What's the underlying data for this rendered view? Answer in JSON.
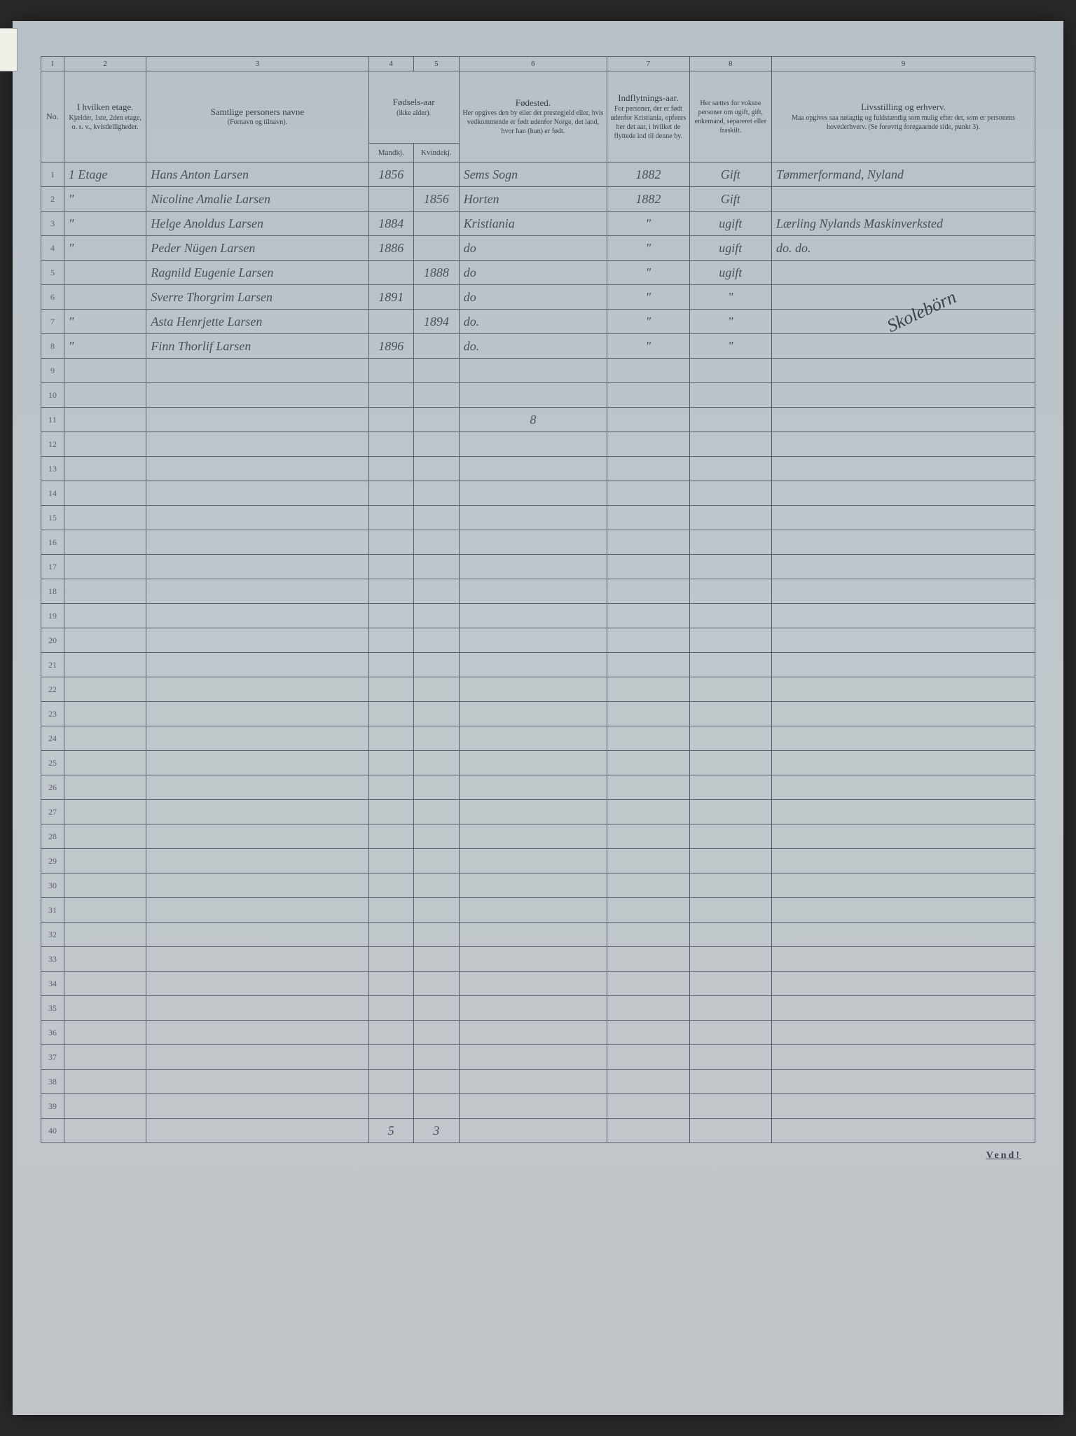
{
  "columns": {
    "nums": [
      "1",
      "2",
      "3",
      "4",
      "5",
      "6",
      "7",
      "8",
      "9"
    ],
    "c1": {
      "label": "No."
    },
    "c2": {
      "main": "I hvilken etage.",
      "sub": "Kjælder, 1ste, 2den etage, o. s. v., kvistleiligheder."
    },
    "c3": {
      "main": "Samtlige personers navne",
      "sub": "(Fornavn og tilnavn)."
    },
    "c45": {
      "main": "Fødsels-aar",
      "sub": "(ikke alder)."
    },
    "c4s": "Mandkj.",
    "c5s": "Kvindekj.",
    "c6": {
      "main": "Fødested.",
      "sub": "Her opgives den by eller det prestegjeld eller, hvis vedkommende er født udenfor Norge, det land, hvor han (hun) er født."
    },
    "c7": {
      "main": "Indflytnings-aar.",
      "sub": "For personer, der er født udenfor Kristiania, opføres her det aar, i hvilket de flyttede ind til denne by."
    },
    "c8": {
      "main": "",
      "sub": "Her sættes for voksne personer om ugift, gift, enkemand, separeret eller fraskilt."
    },
    "c9": {
      "main": "Livsstilling og erhverv.",
      "sub": "Maa opgives saa nøiagtig og fuldstændig som mulig efter det, som er personens hovederhverv. (Se forøvrig foregaaende side, punkt 3)."
    }
  },
  "rows": [
    {
      "n": "1",
      "etage": "1 Etage",
      "navn": "Hans Anton Larsen",
      "m": "1856",
      "k": "",
      "fsted": "Sems Sogn",
      "indfl": "1882",
      "civ": "Gift",
      "erhv": "Tømmerformand, Nyland"
    },
    {
      "n": "2",
      "etage": "\"",
      "navn": "Nicoline Amalie Larsen",
      "m": "",
      "k": "1856",
      "fsted": "Horten",
      "indfl": "1882",
      "civ": "Gift",
      "erhv": ""
    },
    {
      "n": "3",
      "etage": "\"",
      "navn": "Helge Anoldus Larsen",
      "m": "1884",
      "k": "",
      "fsted": "Kristiania",
      "indfl": "\"",
      "civ": "ugift",
      "erhv": "Lærling Nylands Maskinverksted"
    },
    {
      "n": "4",
      "etage": "\"",
      "navn": "Peder Nügen Larsen",
      "m": "1886",
      "k": "",
      "fsted": "do",
      "indfl": "\"",
      "civ": "ugift",
      "erhv": "do.        do."
    },
    {
      "n": "5",
      "etage": "",
      "navn": "Ragnild Eugenie Larsen",
      "m": "",
      "k": "1888",
      "fsted": "do",
      "indfl": "\"",
      "civ": "ugift",
      "erhv": ""
    },
    {
      "n": "6",
      "etage": "",
      "navn": "Sverre Thorgrim Larsen",
      "m": "1891",
      "k": "",
      "fsted": "do",
      "indfl": "\"",
      "civ": "\"",
      "erhv": ""
    },
    {
      "n": "7",
      "etage": "\"",
      "navn": "Asta Henrjette Larsen",
      "m": "",
      "k": "1894",
      "fsted": "do.",
      "indfl": "\"",
      "civ": "\"",
      "erhv": ""
    },
    {
      "n": "8",
      "etage": "\"",
      "navn": "Finn Thorlif Larsen",
      "m": "1896",
      "k": "",
      "fsted": "do.",
      "indfl": "\"",
      "civ": "\"",
      "erhv": ""
    }
  ],
  "annotation_diag": "Skolebörn",
  "mid_mark": "8",
  "bottom_m": "5",
  "bottom_k": "3",
  "footer": "Vend!",
  "total_rows": 40
}
